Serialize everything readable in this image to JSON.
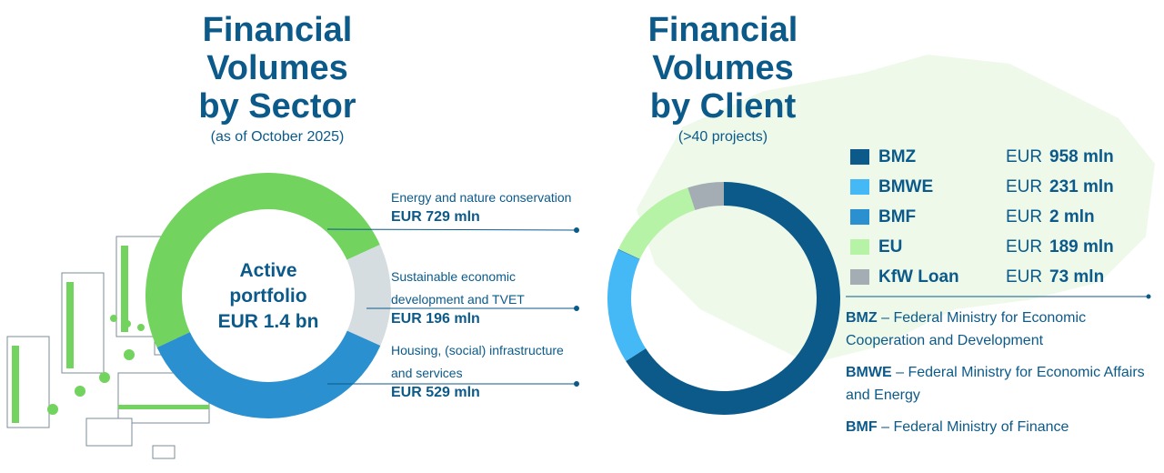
{
  "left": {
    "title": [
      "Financial",
      "Volumes",
      "by Sector"
    ],
    "subtitle": "(as of October 2025)",
    "center": [
      "Active",
      "portfolio",
      "EUR 1.4 bn"
    ]
  },
  "right": {
    "title": [
      "Financial",
      "Volumes",
      "by Client"
    ],
    "subtitle": "(>40 projects)",
    "definitions": [
      {
        "abbr": "BMZ",
        "text": " – Federal Ministry for Economic Cooperation and Development"
      },
      {
        "abbr": "BMWE",
        "text": " – Federal Ministry for Economic Affairs and Energy"
      },
      {
        "abbr": "BMF",
        "text": " – Federal Ministry of Finance"
      }
    ]
  },
  "chart_data": [
    {
      "type": "pie",
      "title": "Financial Volumes by Sector",
      "unit": "EUR mln",
      "labels": [
        "Energy and nature conservation",
        "Sustainable economic development and TVET",
        "Housing, (social) infrastructure and services"
      ],
      "value_labels": [
        "EUR 729 mln",
        "EUR 196 mln",
        "EUR 529 mln"
      ],
      "values": [
        729,
        196,
        529
      ],
      "colors": [
        "#72d35f",
        "#d6dde0",
        "#2a90cf"
      ]
    },
    {
      "type": "pie",
      "title": "Financial Volumes by Client",
      "unit": "EUR mln",
      "labels": [
        "BMZ",
        "BMWE",
        "BMF",
        "EU",
        "KfW Loan"
      ],
      "currency": "EUR",
      "amounts": [
        "958 mln",
        "231 mln",
        "2 mln",
        "189 mln",
        "73 mln"
      ],
      "values": [
        958,
        231,
        2,
        189,
        73
      ],
      "colors": [
        "#0b5a8a",
        "#45b9f5",
        "#2a90cf",
        "#b6f3a6",
        "#a3adb3"
      ]
    }
  ]
}
